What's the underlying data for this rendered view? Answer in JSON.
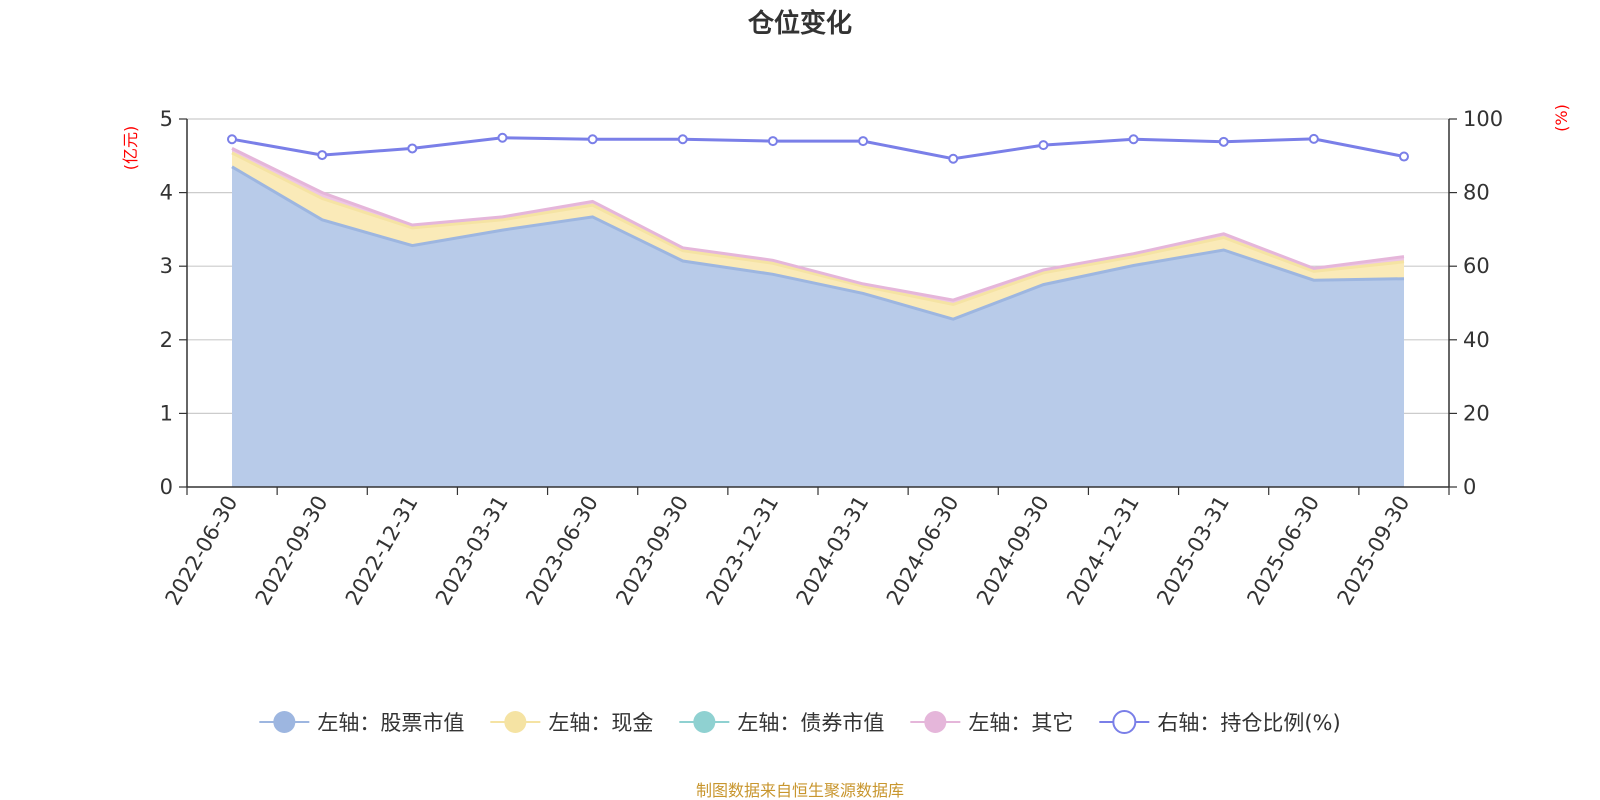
{
  "chart_data": {
    "type": "area",
    "title": "仓位变化",
    "left_axis_unit": "(亿元)",
    "right_axis_unit": "(%)",
    "categories": [
      "2022-06-30",
      "2022-09-30",
      "2022-12-31",
      "2023-03-31",
      "2023-06-30",
      "2023-09-30",
      "2023-12-31",
      "2024-03-31",
      "2024-06-30",
      "2024-09-30",
      "2024-12-31",
      "2025-03-31",
      "2025-06-30",
      "2025-09-30"
    ],
    "left_axis": {
      "min": 0,
      "max": 5,
      "ticks": [
        "0",
        "1",
        "2",
        "3",
        "4",
        "5"
      ]
    },
    "right_axis": {
      "min": 0,
      "max": 100,
      "ticks": [
        "0",
        "20",
        "40",
        "60",
        "80",
        "100"
      ]
    },
    "grid": true,
    "legend_position": "bottom",
    "series": [
      {
        "name": "左轴：股票市值",
        "axis": "left",
        "stack": true,
        "color": "#9db6e0",
        "fill": "#b8cbe9",
        "values": [
          4.35,
          3.63,
          3.28,
          3.49,
          3.67,
          3.07,
          2.89,
          2.63,
          2.28,
          2.75,
          3.01,
          3.22,
          2.81,
          2.83
        ]
      },
      {
        "name": "左轴：现金",
        "axis": "left",
        "stack": true,
        "color": "#f5e3a3",
        "fill": "#faeab8",
        "values": [
          0.19,
          0.29,
          0.24,
          0.14,
          0.16,
          0.14,
          0.15,
          0.1,
          0.2,
          0.16,
          0.12,
          0.17,
          0.12,
          0.23
        ]
      },
      {
        "name": "左轴：债券市值",
        "axis": "left",
        "stack": true,
        "color": "#8fd1d1",
        "fill": "#a8dcdc",
        "values": [
          0,
          0,
          0,
          0,
          0,
          0,
          0,
          0,
          0,
          0,
          0,
          0,
          0,
          0
        ]
      },
      {
        "name": "左轴：其它",
        "axis": "left",
        "stack": true,
        "color": "#e5b6da",
        "fill": "#eec6e4",
        "values": [
          0.06,
          0.08,
          0.04,
          0.04,
          0.05,
          0.04,
          0.04,
          0.03,
          0.06,
          0.04,
          0.04,
          0.05,
          0.04,
          0.07
        ]
      },
      {
        "name": "右轴：持仓比例(%)",
        "axis": "right",
        "stack": false,
        "color": "#7a7fe8",
        "values": [
          94.5,
          90.2,
          92.0,
          94.9,
          94.5,
          94.5,
          94.0,
          94.0,
          89.2,
          92.9,
          94.5,
          93.8,
          94.6,
          89.8
        ]
      }
    ],
    "source_note": "制图数据来自恒生聚源数据库"
  }
}
